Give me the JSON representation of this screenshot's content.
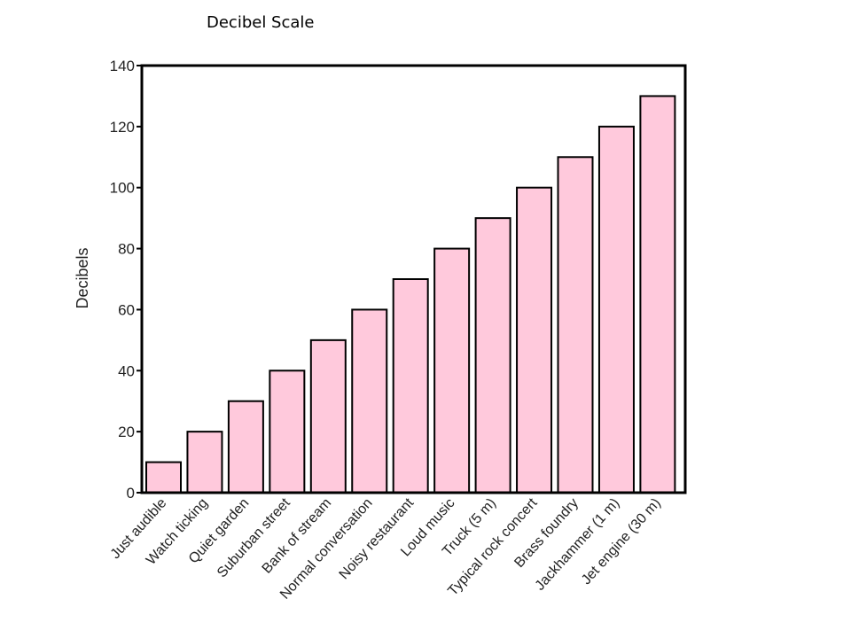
{
  "slide": {
    "title": "Decibel Scale"
  },
  "chart_data": {
    "type": "bar",
    "title": "",
    "xlabel": "",
    "ylabel": "Decibels",
    "ylim": [
      0,
      140
    ],
    "yticks": [
      0,
      20,
      40,
      60,
      80,
      100,
      120,
      140
    ],
    "grid": false,
    "legend": "none",
    "categories": [
      "Just audible",
      "Watch ticking",
      "Quiet garden",
      "Suburban street",
      "Bank of stream",
      "Normal conversation",
      "Noisy restaurant",
      "Loud music",
      "Truck (5 m)",
      "Typical rock concert",
      "Brass foundry",
      "Jackhammer (1 m)",
      "Jet engine (30 m)"
    ],
    "values": [
      10,
      20,
      30,
      40,
      50,
      60,
      70,
      80,
      90,
      100,
      110,
      120,
      130
    ],
    "colors": {
      "bar_fill": "#ffc9dc",
      "bar_stroke": "#000000",
      "axis": "#000000"
    }
  }
}
